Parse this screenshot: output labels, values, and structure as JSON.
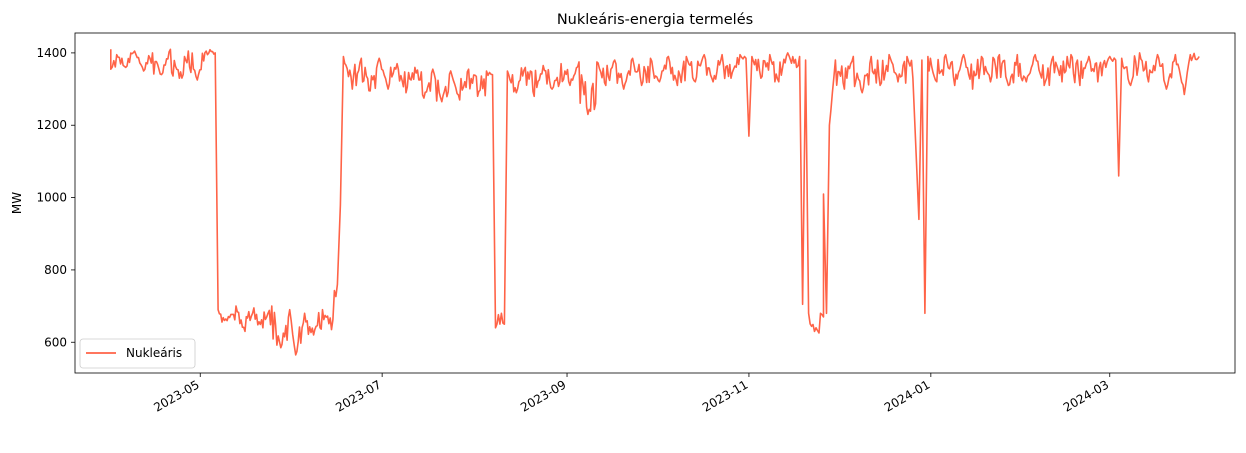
{
  "chart_data": {
    "type": "line",
    "title": "Nukleáris-energia termelés",
    "xlabel": "",
    "ylabel": "MW",
    "ylim": [
      515,
      1455
    ],
    "xlim": [
      "2023-03-20",
      "2024-04-12"
    ],
    "y_ticks": [
      600,
      800,
      1000,
      1200,
      1400
    ],
    "x_ticks": [
      "2023-05",
      "2023-07",
      "2023-09",
      "2023-11",
      "2024-01",
      "2024-03"
    ],
    "x_tick_dates": [
      "2023-05-01",
      "2023-07-01",
      "2023-09-01",
      "2023-11-01",
      "2024-01-01",
      "2024-03-01"
    ],
    "legend_position": "lower-left",
    "series": [
      {
        "name": "Nukleáris",
        "color": "#ff6347",
        "points": [
          [
            "2023-04-01",
            1410
          ],
          [
            "2023-04-01",
            1355
          ],
          [
            "2023-04-03",
            1395
          ],
          [
            "2023-04-06",
            1360
          ],
          [
            "2023-04-09",
            1405
          ],
          [
            "2023-04-12",
            1350
          ],
          [
            "2023-04-15",
            1400
          ],
          [
            "2023-04-18",
            1340
          ],
          [
            "2023-04-21",
            1410
          ],
          [
            "2023-04-24",
            1330
          ],
          [
            "2023-04-27",
            1405
          ],
          [
            "2023-04-30",
            1325
          ],
          [
            "2023-05-03",
            1405
          ],
          [
            "2023-05-06",
            1400
          ],
          [
            "2023-05-07",
            690
          ],
          [
            "2023-05-10",
            660
          ],
          [
            "2023-05-13",
            700
          ],
          [
            "2023-05-16",
            630
          ],
          [
            "2023-05-19",
            695
          ],
          [
            "2023-05-22",
            640
          ],
          [
            "2023-05-25",
            700
          ],
          [
            "2023-05-28",
            585
          ],
          [
            "2023-05-31",
            690
          ],
          [
            "2023-06-02",
            565
          ],
          [
            "2023-06-05",
            680
          ],
          [
            "2023-06-08",
            620
          ],
          [
            "2023-06-11",
            690
          ],
          [
            "2023-06-14",
            635
          ],
          [
            "2023-06-16",
            760
          ],
          [
            "2023-06-17",
            980
          ],
          [
            "2023-06-18",
            1390
          ],
          [
            "2023-06-21",
            1300
          ],
          [
            "2023-06-24",
            1385
          ],
          [
            "2023-06-27",
            1295
          ],
          [
            "2023-06-30",
            1385
          ],
          [
            "2023-07-03",
            1300
          ],
          [
            "2023-07-06",
            1370
          ],
          [
            "2023-07-09",
            1290
          ],
          [
            "2023-07-12",
            1360
          ],
          [
            "2023-07-15",
            1275
          ],
          [
            "2023-07-18",
            1355
          ],
          [
            "2023-07-21",
            1265
          ],
          [
            "2023-07-24",
            1350
          ],
          [
            "2023-07-27",
            1270
          ],
          [
            "2023-07-30",
            1355
          ],
          [
            "2023-08-02",
            1280
          ],
          [
            "2023-08-05",
            1350
          ],
          [
            "2023-08-07",
            1340
          ],
          [
            "2023-08-08",
            640
          ],
          [
            "2023-08-10",
            680
          ],
          [
            "2023-08-11",
            650
          ],
          [
            "2023-08-12",
            1350
          ],
          [
            "2023-08-15",
            1290
          ],
          [
            "2023-08-18",
            1360
          ],
          [
            "2023-08-21",
            1280
          ],
          [
            "2023-08-24",
            1365
          ],
          [
            "2023-08-27",
            1300
          ],
          [
            "2023-08-30",
            1370
          ],
          [
            "2023-09-02",
            1310
          ],
          [
            "2023-09-05",
            1375
          ],
          [
            "2023-09-08",
            1230
          ],
          [
            "2023-09-11",
            1375
          ],
          [
            "2023-09-14",
            1310
          ],
          [
            "2023-09-17",
            1380
          ],
          [
            "2023-09-20",
            1300
          ],
          [
            "2023-09-23",
            1385
          ],
          [
            "2023-09-26",
            1310
          ],
          [
            "2023-09-29",
            1385
          ],
          [
            "2023-10-02",
            1320
          ],
          [
            "2023-10-05",
            1390
          ],
          [
            "2023-10-08",
            1310
          ],
          [
            "2023-10-11",
            1390
          ],
          [
            "2023-10-14",
            1320
          ],
          [
            "2023-10-17",
            1395
          ],
          [
            "2023-10-20",
            1320
          ],
          [
            "2023-10-23",
            1395
          ],
          [
            "2023-10-26",
            1330
          ],
          [
            "2023-10-29",
            1395
          ],
          [
            "2023-10-31",
            1385
          ],
          [
            "2023-11-01",
            1170
          ],
          [
            "2023-11-02",
            1390
          ],
          [
            "2023-11-05",
            1330
          ],
          [
            "2023-11-08",
            1395
          ],
          [
            "2023-11-11",
            1320
          ],
          [
            "2023-11-14",
            1400
          ],
          [
            "2023-11-17",
            1360
          ],
          [
            "2023-11-18",
            1390
          ],
          [
            "2023-11-19",
            705
          ],
          [
            "2023-11-20",
            1380
          ],
          [
            "2023-11-21",
            680
          ],
          [
            "2023-11-23",
            630
          ],
          [
            "2023-11-25",
            680
          ],
          [
            "2023-11-26",
            670
          ],
          [
            "2023-11-26",
            1010
          ],
          [
            "2023-11-27",
            680
          ],
          [
            "2023-11-28",
            1200
          ],
          [
            "2023-11-30",
            1380
          ],
          [
            "2023-12-03",
            1300
          ],
          [
            "2023-12-06",
            1390
          ],
          [
            "2023-12-09",
            1290
          ],
          [
            "2023-12-12",
            1390
          ],
          [
            "2023-12-15",
            1310
          ],
          [
            "2023-12-18",
            1395
          ],
          [
            "2023-12-21",
            1320
          ],
          [
            "2023-12-24",
            1390
          ],
          [
            "2023-12-26",
            1330
          ],
          [
            "2023-12-28",
            940
          ],
          [
            "2023-12-29",
            1380
          ],
          [
            "2023-12-30",
            680
          ],
          [
            "2023-12-31",
            1390
          ],
          [
            "2024-01-03",
            1320
          ],
          [
            "2024-01-06",
            1395
          ],
          [
            "2024-01-09",
            1310
          ],
          [
            "2024-01-12",
            1395
          ],
          [
            "2024-01-15",
            1300
          ],
          [
            "2024-01-18",
            1390
          ],
          [
            "2024-01-21",
            1320
          ],
          [
            "2024-01-24",
            1395
          ],
          [
            "2024-01-27",
            1310
          ],
          [
            "2024-01-30",
            1395
          ],
          [
            "2024-02-02",
            1320
          ],
          [
            "2024-02-05",
            1395
          ],
          [
            "2024-02-08",
            1310
          ],
          [
            "2024-02-11",
            1390
          ],
          [
            "2024-02-14",
            1320
          ],
          [
            "2024-02-17",
            1395
          ],
          [
            "2024-02-20",
            1310
          ],
          [
            "2024-02-23",
            1390
          ],
          [
            "2024-02-26",
            1320
          ],
          [
            "2024-03-01",
            1390
          ],
          [
            "2024-03-03",
            1380
          ],
          [
            "2024-03-04",
            1060
          ],
          [
            "2024-03-05",
            1385
          ],
          [
            "2024-03-08",
            1310
          ],
          [
            "2024-03-11",
            1400
          ],
          [
            "2024-03-14",
            1320
          ],
          [
            "2024-03-17",
            1395
          ],
          [
            "2024-03-20",
            1300
          ],
          [
            "2024-03-23",
            1395
          ],
          [
            "2024-03-26",
            1285
          ],
          [
            "2024-03-28",
            1395
          ],
          [
            "2024-03-31",
            1390
          ]
        ]
      }
    ]
  }
}
